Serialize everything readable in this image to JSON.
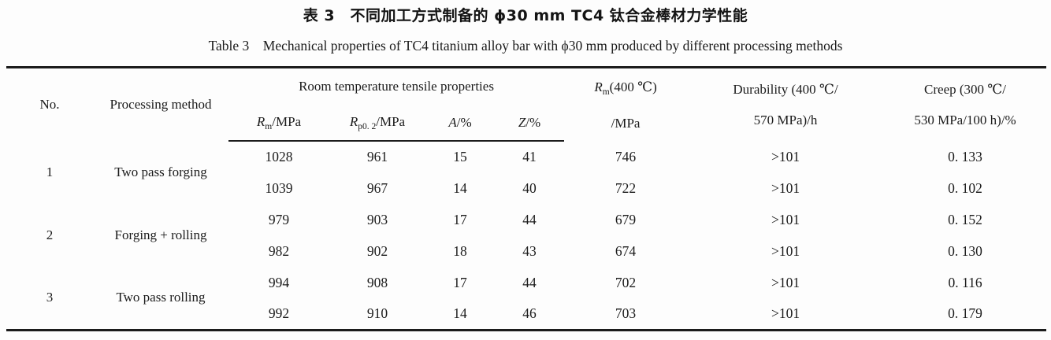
{
  "title": {
    "zh": "表 3　不同加工方式制备的 ϕ30 mm TC4 钛合金棒材力学性能",
    "en": "Table 3　Mechanical properties of TC4 titanium alloy bar with ϕ30 mm produced by different processing methods"
  },
  "table": {
    "headers": {
      "no": "No.",
      "method": "Processing method",
      "rt_group": "Room temperature tensile properties",
      "rm": {
        "sym": "R",
        "sub": "m",
        "unit": "/MPa"
      },
      "rp02": {
        "sym": "R",
        "sub": "p0. 2",
        "unit": "/MPa"
      },
      "a": {
        "sym": "A",
        "unit": "/%"
      },
      "z": {
        "sym": "Z",
        "unit": "/%"
      },
      "rm400": {
        "sym": "R",
        "sub": "m",
        "rest": "(400 ℃)",
        "line2": "/MPa"
      },
      "durability": {
        "line1": "Durability (400 ℃/",
        "line2": "570 MPa)/h"
      },
      "creep": {
        "line1": "Creep (300 ℃/",
        "line2": "530 MPa/100 h)/%"
      }
    },
    "groups": [
      {
        "no": "1",
        "method": "Two pass forging",
        "rows": [
          {
            "rm": "1028",
            "rp02": "961",
            "a": "15",
            "z": "41",
            "rm400": "746",
            "durability": ">101",
            "creep": "0. 133"
          },
          {
            "rm": "1039",
            "rp02": "967",
            "a": "14",
            "z": "40",
            "rm400": "722",
            "durability": ">101",
            "creep": "0. 102"
          }
        ]
      },
      {
        "no": "2",
        "method": "Forging + rolling",
        "rows": [
          {
            "rm": "979",
            "rp02": "903",
            "a": "17",
            "z": "44",
            "rm400": "679",
            "durability": ">101",
            "creep": "0. 152"
          },
          {
            "rm": "982",
            "rp02": "902",
            "a": "18",
            "z": "43",
            "rm400": "674",
            "durability": ">101",
            "creep": "0. 130"
          }
        ]
      },
      {
        "no": "3",
        "method": "Two pass rolling",
        "rows": [
          {
            "rm": "994",
            "rp02": "908",
            "a": "17",
            "z": "44",
            "rm400": "702",
            "durability": ">101",
            "creep": "0. 116"
          },
          {
            "rm": "992",
            "rp02": "910",
            "a": "14",
            "z": "46",
            "rm400": "703",
            "durability": ">101",
            "creep": "0. 179"
          }
        ]
      }
    ]
  },
  "chart_data": {
    "type": "table",
    "title": "Table 3 Mechanical properties of TC4 titanium alloy bar with ϕ30 mm produced by different processing methods",
    "columns": [
      "No.",
      "Processing method",
      "Rm/MPa",
      "Rp0.2/MPa",
      "A/%",
      "Z/%",
      "Rm(400 ℃)/MPa",
      "Durability (400 ℃/570 MPa)/h",
      "Creep (300 ℃/530 MPa/100 h)/%"
    ],
    "rows": [
      [
        "1",
        "Two pass forging",
        "1028",
        "961",
        "15",
        "41",
        "746",
        ">101",
        "0.133"
      ],
      [
        "1",
        "Two pass forging",
        "1039",
        "967",
        "14",
        "40",
        "722",
        ">101",
        "0.102"
      ],
      [
        "2",
        "Forging + rolling",
        "979",
        "903",
        "17",
        "44",
        "679",
        ">101",
        "0.152"
      ],
      [
        "2",
        "Forging + rolling",
        "982",
        "902",
        "18",
        "43",
        "674",
        ">101",
        "0.130"
      ],
      [
        "3",
        "Two pass rolling",
        "994",
        "908",
        "17",
        "44",
        "702",
        ">101",
        "0.116"
      ],
      [
        "3",
        "Two pass rolling",
        "992",
        "910",
        "14",
        "46",
        "703",
        ">101",
        "0.179"
      ]
    ]
  }
}
